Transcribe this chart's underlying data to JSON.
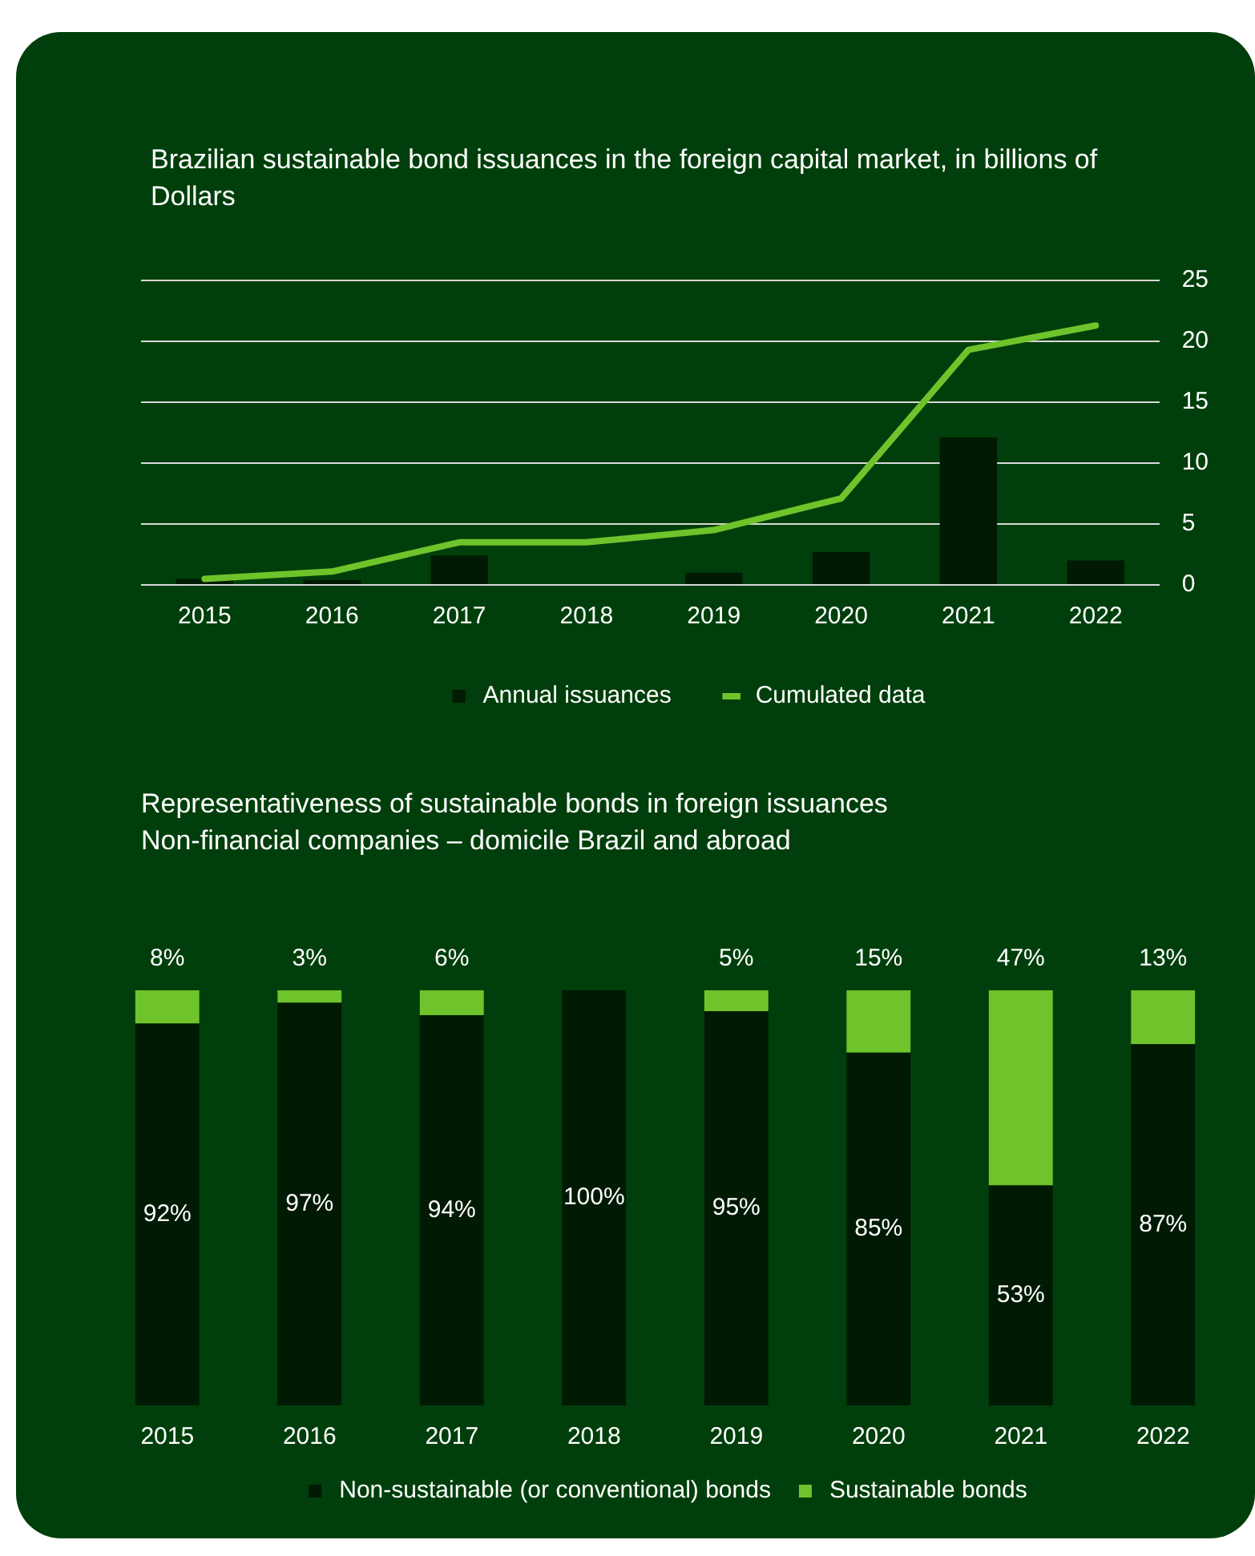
{
  "chart_data": [
    {
      "type": "bar",
      "title": "Brazilian sustainable bond issuances in the foreign capital market, in billions of Dollars",
      "categories": [
        "2015",
        "2016",
        "2017",
        "2018",
        "2019",
        "2020",
        "2021",
        "2022"
      ],
      "series": [
        {
          "name": "Annual issuances",
          "type": "bar",
          "color": "#001a03",
          "values": [
            0.5,
            0.4,
            2.4,
            0,
            1.0,
            2.7,
            12.1,
            2.0
          ]
        },
        {
          "name": "Cumulated data",
          "type": "line",
          "color": "#6fc42b",
          "values": [
            0.5,
            1.1,
            3.5,
            3.5,
            4.5,
            7.1,
            19.3,
            21.3
          ]
        }
      ],
      "ylim": [
        0,
        25
      ],
      "yticks": [
        0,
        5,
        10,
        15,
        20,
        25
      ],
      "grid": "y",
      "legend": "bottom",
      "marker": "none",
      "line_style": "solid"
    },
    {
      "type": "bar",
      "title": "Representativeness of sustainable bonds in foreign issuances",
      "subtitle": "Non-financial companies – domicile Brazil and abroad",
      "categories": [
        "2015",
        "2016",
        "2017",
        "2018",
        "2019",
        "2020",
        "2021",
        "2022"
      ],
      "stacked": true,
      "series": [
        {
          "name": "Non-sustainable (or conventional) bonds",
          "color": "#001a03",
          "values": [
            92,
            97,
            94,
            100,
            95,
            85,
            53,
            87
          ],
          "value_labels": [
            "92%",
            "97%",
            "94%",
            "100%",
            "95%",
            "85%",
            "53%",
            "87%"
          ]
        },
        {
          "name": "Sustainable bonds",
          "color": "#6fc42b",
          "values": [
            8,
            3,
            6,
            null,
            5,
            15,
            47,
            13
          ],
          "value_labels": [
            "8%",
            "3%",
            "6%",
            null,
            "5%",
            "15%",
            "47%",
            "13%"
          ]
        }
      ],
      "ylim": [
        0,
        100
      ],
      "tick_labels": "x",
      "grid": false,
      "legend": "bottom"
    }
  ]
}
